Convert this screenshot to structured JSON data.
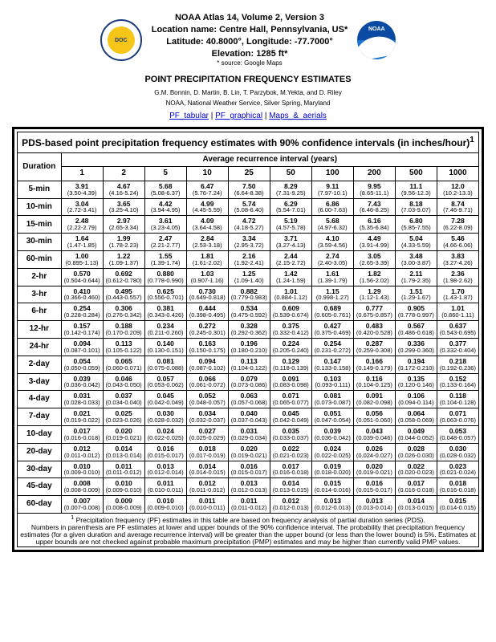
{
  "header": {
    "line1": "NOAA Atlas 14, Volume 2, Version 3",
    "line2": "Location name: Centre Hall, Pennsylvania, US*",
    "line3": "Latitude: 40.8000°, Longitude: -77.7000°",
    "line4": "Elevation: 1285 ft*",
    "source": "* source: Google Maps"
  },
  "section_title": "POINT PRECIPITATION FREQUENCY ESTIMATES",
  "authors": "G.M. Bonnin, D. Martin, B. Lin, T. Parzybok, M.Yekta, and D. Riley",
  "org": "NOAA, National Weather Service, Silver Spring, Maryland",
  "links": {
    "a": "PF_tabular",
    "b": "PF_graphical",
    "c": "Maps_&_aerials"
  },
  "table_title": "PDS-based point precipitation frequency estimates with 90% confidence intervals (in inches/hour)",
  "table_title_sup": "1",
  "duration_header": "Duration",
  "ari_header": "Average recurrence interval (years)",
  "columns": [
    "1",
    "2",
    "5",
    "10",
    "25",
    "50",
    "100",
    "200",
    "500",
    "1000"
  ],
  "rows": [
    {
      "d": "5-min",
      "c": [
        [
          "3.91",
          "(3.50-4.39)"
        ],
        [
          "4.67",
          "(4.16-5.24)"
        ],
        [
          "5.68",
          "(5.08-6.37)"
        ],
        [
          "6.47",
          "(5.76-7.24)"
        ],
        [
          "7.50",
          "(6.64-8.38)"
        ],
        [
          "8.29",
          "(7.31-9.25)"
        ],
        [
          "9.11",
          "(7.97-10.1)"
        ],
        [
          "9.95",
          "(8.65-11.1)"
        ],
        [
          "11.1",
          "(9.56-12.3)"
        ],
        [
          "12.0",
          "(10.2-13.3)"
        ]
      ]
    },
    {
      "d": "10-min",
      "c": [
        [
          "3.04",
          "(2.72-3.41)"
        ],
        [
          "3.65",
          "(3.25-4.10)"
        ],
        [
          "4.42",
          "(3.94-4.95)"
        ],
        [
          "4.99",
          "(4.45-5.59)"
        ],
        [
          "5.74",
          "(5.08-6.40)"
        ],
        [
          "6.29",
          "(5.54-7.01)"
        ],
        [
          "6.86",
          "(6.00-7.63)"
        ],
        [
          "7.43",
          "(6.46-8.25)"
        ],
        [
          "8.18",
          "(7.03-9.07)"
        ],
        [
          "8.74",
          "(7.46-9.71)"
        ]
      ]
    },
    {
      "d": "15-min",
      "c": [
        [
          "2.48",
          "(2.22-2.79)"
        ],
        [
          "2.97",
          "(2.65-3.34)"
        ],
        [
          "3.61",
          "(3.23-4.05)"
        ],
        [
          "4.09",
          "(3.64-4.58)"
        ],
        [
          "4.72",
          "(4.18-5.27)"
        ],
        [
          "5.19",
          "(4.57-5.78)"
        ],
        [
          "5.68",
          "(4.97-6.32)"
        ],
        [
          "6.16",
          "(5.35-6.84)"
        ],
        [
          "6.80",
          "(5.85-7.55)"
        ],
        [
          "7.28",
          "(6.22-8.09)"
        ]
      ]
    },
    {
      "d": "30-min",
      "c": [
        [
          "1.64",
          "(1.47-1.85)"
        ],
        [
          "1.99",
          "(1.78-2.23)"
        ],
        [
          "2.47",
          "(2.21-2.77)"
        ],
        [
          "2.84",
          "(2.53-3.18)"
        ],
        [
          "3.34",
          "(2.95-3.72)"
        ],
        [
          "3.71",
          "(3.27-4.13)"
        ],
        [
          "4.10",
          "(3.59-4.56)"
        ],
        [
          "4.49",
          "(3.91-4.99)"
        ],
        [
          "5.04",
          "(4.33-5.59)"
        ],
        [
          "5.46",
          "(4.66-6.06)"
        ]
      ]
    },
    {
      "d": "60-min",
      "c": [
        [
          "1.00",
          "(0.895-1.13)"
        ],
        [
          "1.22",
          "(1.09-1.37)"
        ],
        [
          "1.55",
          "(1.39-1.74)"
        ],
        [
          "1.81",
          "(1.61-2.02)"
        ],
        [
          "2.16",
          "(1.92-2.41)"
        ],
        [
          "2.44",
          "(2.15-2.72)"
        ],
        [
          "2.74",
          "(2.40-3.05)"
        ],
        [
          "3.05",
          "(2.65-3.39)"
        ],
        [
          "3.48",
          "(3.00-3.87)"
        ],
        [
          "3.83",
          "(3.27-4.26)"
        ]
      ]
    },
    {
      "d": "2-hr",
      "c": [
        [
          "0.570",
          "(0.504-0.644)"
        ],
        [
          "0.692",
          "(0.612-0.780)"
        ],
        [
          "0.880",
          "(0.778-0.990)"
        ],
        [
          "1.03",
          "(0.907-1.16)"
        ],
        [
          "1.25",
          "(1.09-1.40)"
        ],
        [
          "1.42",
          "(1.24-1.59)"
        ],
        [
          "1.61",
          "(1.39-1.79)"
        ],
        [
          "1.82",
          "(1.56-2.02)"
        ],
        [
          "2.11",
          "(1.79-2.35)"
        ],
        [
          "2.36",
          "(1.98-2.62)"
        ]
      ]
    },
    {
      "d": "3-hr",
      "c": [
        [
          "0.410",
          "(0.366-0.460)"
        ],
        [
          "0.495",
          "(0.443-0.557)"
        ],
        [
          "0.625",
          "(0.556-0.701)"
        ],
        [
          "0.730",
          "(0.649-0.818)"
        ],
        [
          "0.882",
          "(0.779-0.983)"
        ],
        [
          "1.01",
          "(0.884-1.12)"
        ],
        [
          "1.15",
          "(0.998-1.27)"
        ],
        [
          "1.29",
          "(1.12-1.43)"
        ],
        [
          "1.51",
          "(1.29-1.67)"
        ],
        [
          "1.70",
          "(1.43-1.87)"
        ]
      ]
    },
    {
      "d": "6-hr",
      "c": [
        [
          "0.254",
          "(0.228-0.284)"
        ],
        [
          "0.306",
          "(0.276-0.342)"
        ],
        [
          "0.381",
          "(0.343-0.426)"
        ],
        [
          "0.444",
          "(0.398-0.495)"
        ],
        [
          "0.534",
          "(0.475-0.592)"
        ],
        [
          "0.609",
          "(0.539-0.674)"
        ],
        [
          "0.689",
          "(0.605-0.761)"
        ],
        [
          "0.777",
          "(0.675-0.857)"
        ],
        [
          "0.905",
          "(0.778-0.997)"
        ],
        [
          "1.01",
          "(0.860-1.11)"
        ]
      ]
    },
    {
      "d": "12-hr",
      "c": [
        [
          "0.157",
          "(0.142-0.174)"
        ],
        [
          "0.188",
          "(0.170-0.209)"
        ],
        [
          "0.234",
          "(0.211-0.260)"
        ],
        [
          "0.272",
          "(0.245-0.301)"
        ],
        [
          "0.328",
          "(0.292-0.362)"
        ],
        [
          "0.375",
          "(0.332-0.412)"
        ],
        [
          "0.427",
          "(0.375-0.469)"
        ],
        [
          "0.483",
          "(0.420-0.528)"
        ],
        [
          "0.567",
          "(0.486-0.618)"
        ],
        [
          "0.637",
          "(0.543-0.695)"
        ]
      ]
    },
    {
      "d": "24-hr",
      "c": [
        [
          "0.094",
          "(0.087-0.101)"
        ],
        [
          "0.113",
          "(0.105-0.122)"
        ],
        [
          "0.140",
          "(0.130-0.151)"
        ],
        [
          "0.163",
          "(0.150-0.175)"
        ],
        [
          "0.196",
          "(0.180-0.210)"
        ],
        [
          "0.224",
          "(0.205-0.240)"
        ],
        [
          "0.254",
          "(0.231-0.272)"
        ],
        [
          "0.287",
          "(0.259-0.308)"
        ],
        [
          "0.336",
          "(0.299-0.360)"
        ],
        [
          "0.377",
          "(0.332-0.404)"
        ]
      ]
    },
    {
      "d": "2-day",
      "c": [
        [
          "0.054",
          "(0.050-0.059)"
        ],
        [
          "0.065",
          "(0.060-0.071)"
        ],
        [
          "0.081",
          "(0.075-0.088)"
        ],
        [
          "0.094",
          "(0.087-0.102)"
        ],
        [
          "0.113",
          "(0.104-0.122)"
        ],
        [
          "0.129",
          "(0.118-0.139)"
        ],
        [
          "0.147",
          "(0.133-0.158)"
        ],
        [
          "0.166",
          "(0.149-0.179)"
        ],
        [
          "0.194",
          "(0.172-0.210)"
        ],
        [
          "0.218",
          "(0.192-0.236)"
        ]
      ]
    },
    {
      "d": "3-day",
      "c": [
        [
          "0.039",
          "(0.036-0.042)"
        ],
        [
          "0.046",
          "(0.043-0.050)"
        ],
        [
          "0.057",
          "(0.053-0.062)"
        ],
        [
          "0.066",
          "(0.061-0.072)"
        ],
        [
          "0.079",
          "(0.073-0.086)"
        ],
        [
          "0.091",
          "(0.083-0.098)"
        ],
        [
          "0.103",
          "(0.093-0.111)"
        ],
        [
          "0.116",
          "(0.104-0.125)"
        ],
        [
          "0.135",
          "(0.120-0.146)"
        ],
        [
          "0.152",
          "(0.133-0.164)"
        ]
      ]
    },
    {
      "d": "4-day",
      "c": [
        [
          "0.031",
          "(0.028-0.033)"
        ],
        [
          "0.037",
          "(0.034-0.040)"
        ],
        [
          "0.045",
          "(0.042-0.049)"
        ],
        [
          "0.052",
          "(0.048-0.057)"
        ],
        [
          "0.063",
          "(0.057-0.068)"
        ],
        [
          "0.071",
          "(0.065-0.077)"
        ],
        [
          "0.081",
          "(0.073-0.087)"
        ],
        [
          "0.091",
          "(0.082-0.098)"
        ],
        [
          "0.106",
          "(0.094-0.114)"
        ],
        [
          "0.118",
          "(0.104-0.128)"
        ]
      ]
    },
    {
      "d": "7-day",
      "c": [
        [
          "0.021",
          "(0.019-0.022)"
        ],
        [
          "0.025",
          "(0.023-0.026)"
        ],
        [
          "0.030",
          "(0.028-0.032)"
        ],
        [
          "0.034",
          "(0.032-0.037)"
        ],
        [
          "0.040",
          "(0.037-0.043)"
        ],
        [
          "0.045",
          "(0.042-0.049)"
        ],
        [
          "0.051",
          "(0.047-0.054)"
        ],
        [
          "0.056",
          "(0.051-0.060)"
        ],
        [
          "0.064",
          "(0.058-0.069)"
        ],
        [
          "0.071",
          "(0.063-0.076)"
        ]
      ]
    },
    {
      "d": "10-day",
      "c": [
        [
          "0.017",
          "(0.016-0.018)"
        ],
        [
          "0.020",
          "(0.019-0.021)"
        ],
        [
          "0.024",
          "(0.022-0.025)"
        ],
        [
          "0.027",
          "(0.025-0.029)"
        ],
        [
          "0.031",
          "(0.029-0.034)"
        ],
        [
          "0.035",
          "(0.033-0.037)"
        ],
        [
          "0.039",
          "(0.036-0.042)"
        ],
        [
          "0.043",
          "(0.039-0.046)"
        ],
        [
          "0.049",
          "(0.044-0.052)"
        ],
        [
          "0.053",
          "(0.048-0.057)"
        ]
      ]
    },
    {
      "d": "20-day",
      "c": [
        [
          "0.012",
          "(0.011-0.012)"
        ],
        [
          "0.014",
          "(0.013-0.014)"
        ],
        [
          "0.016",
          "(0.015-0.017)"
        ],
        [
          "0.018",
          "(0.017-0.019)"
        ],
        [
          "0.020",
          "(0.019-0.021)"
        ],
        [
          "0.022",
          "(0.021-0.023)"
        ],
        [
          "0.024",
          "(0.022-0.025)"
        ],
        [
          "0.026",
          "(0.024-0.027)"
        ],
        [
          "0.028",
          "(0.026-0.030)"
        ],
        [
          "0.030",
          "(0.028-0.032)"
        ]
      ]
    },
    {
      "d": "30-day",
      "c": [
        [
          "0.010",
          "(0.009-0.010)"
        ],
        [
          "0.011",
          "(0.011-0.012)"
        ],
        [
          "0.013",
          "(0.012-0.014)"
        ],
        [
          "0.014",
          "(0.014-0.015)"
        ],
        [
          "0.016",
          "(0.015-0.017)"
        ],
        [
          "0.017",
          "(0.016-0.018)"
        ],
        [
          "0.019",
          "(0.018-0.020)"
        ],
        [
          "0.020",
          "(0.019-0.021)"
        ],
        [
          "0.022",
          "(0.020-0.023)"
        ],
        [
          "0.023",
          "(0.021-0.024)"
        ]
      ]
    },
    {
      "d": "45-day",
      "c": [
        [
          "0.008",
          "(0.008-0.009)"
        ],
        [
          "0.010",
          "(0.009-0.010)"
        ],
        [
          "0.011",
          "(0.010-0.011)"
        ],
        [
          "0.012",
          "(0.011-0.012)"
        ],
        [
          "0.013",
          "(0.012-0.013)"
        ],
        [
          "0.014",
          "(0.013-0.015)"
        ],
        [
          "0.015",
          "(0.014-0.016)"
        ],
        [
          "0.016",
          "(0.015-0.017)"
        ],
        [
          "0.017",
          "(0.016-0.018)"
        ],
        [
          "0.018",
          "(0.016-0.018)"
        ]
      ]
    },
    {
      "d": "60-day",
      "c": [
        [
          "0.007",
          "(0.007-0.008)"
        ],
        [
          "0.009",
          "(0.008-0.009)"
        ],
        [
          "0.010",
          "(0.009-0.010)"
        ],
        [
          "0.011",
          "(0.010-0.011)"
        ],
        [
          "0.011",
          "(0.011-0.012)"
        ],
        [
          "0.012",
          "(0.012-0.013)"
        ],
        [
          "0.013",
          "(0.012-0.013)"
        ],
        [
          "0.013",
          "(0.013-0.014)"
        ],
        [
          "0.014",
          "(0.013-0.015)"
        ],
        [
          "0.015",
          "(0.014-0.015)"
        ]
      ]
    }
  ],
  "footnote1": "Precipitation frequency (PF) estimates in this table are based on frequency analysis of partial duration series (PDS).",
  "footnote2": "Numbers in parenthesis are PF estimates at lower and upper bounds of the 90% confidence interval. The probability that precipitation frequency estimates (for a given duration and average recurrence interval) will be greater than the upper bound (or less than the lower bound) is 5%. Estimates at upper bounds are not checked against probable maximum precipitation (PMP) estimates and may be higher than currently valid PMP values."
}
